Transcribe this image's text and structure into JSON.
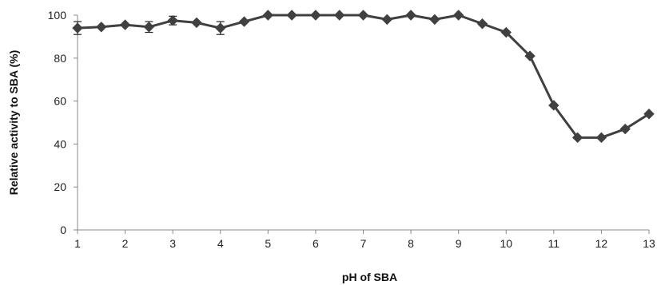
{
  "chart_data": {
    "type": "line",
    "xlabel": "pH of SBA",
    "ylabel": "Relative activity to SBA (%)",
    "xlim": [
      1,
      13
    ],
    "ylim": [
      0,
      100
    ],
    "x_ticks": [
      1,
      2,
      3,
      4,
      5,
      6,
      7,
      8,
      9,
      10,
      11,
      12,
      13
    ],
    "y_ticks": [
      0,
      20,
      40,
      60,
      80,
      100
    ],
    "grid": false,
    "legend": "none",
    "series": [
      {
        "color": "#404040",
        "marker": "diamond",
        "x": [
          1,
          1.5,
          2,
          2.5,
          3,
          3.5,
          4,
          4.5,
          5,
          5.5,
          6,
          6.5,
          7,
          7.5,
          8,
          8.5,
          9,
          9.5,
          10,
          10.5,
          11,
          11.5,
          12,
          12.5,
          13
        ],
        "y": [
          94,
          94.5,
          95.5,
          94.5,
          97.5,
          96.5,
          94,
          97,
          100,
          100,
          100,
          100,
          100,
          98,
          100,
          98,
          100,
          96,
          92,
          81,
          58,
          43,
          43,
          47,
          54
        ],
        "error": [
          3,
          0,
          0,
          2.5,
          2,
          0,
          3,
          0,
          0,
          0,
          0,
          0,
          0,
          0,
          0,
          0,
          0,
          0,
          0,
          0,
          0,
          0,
          0,
          0,
          0
        ]
      }
    ]
  }
}
